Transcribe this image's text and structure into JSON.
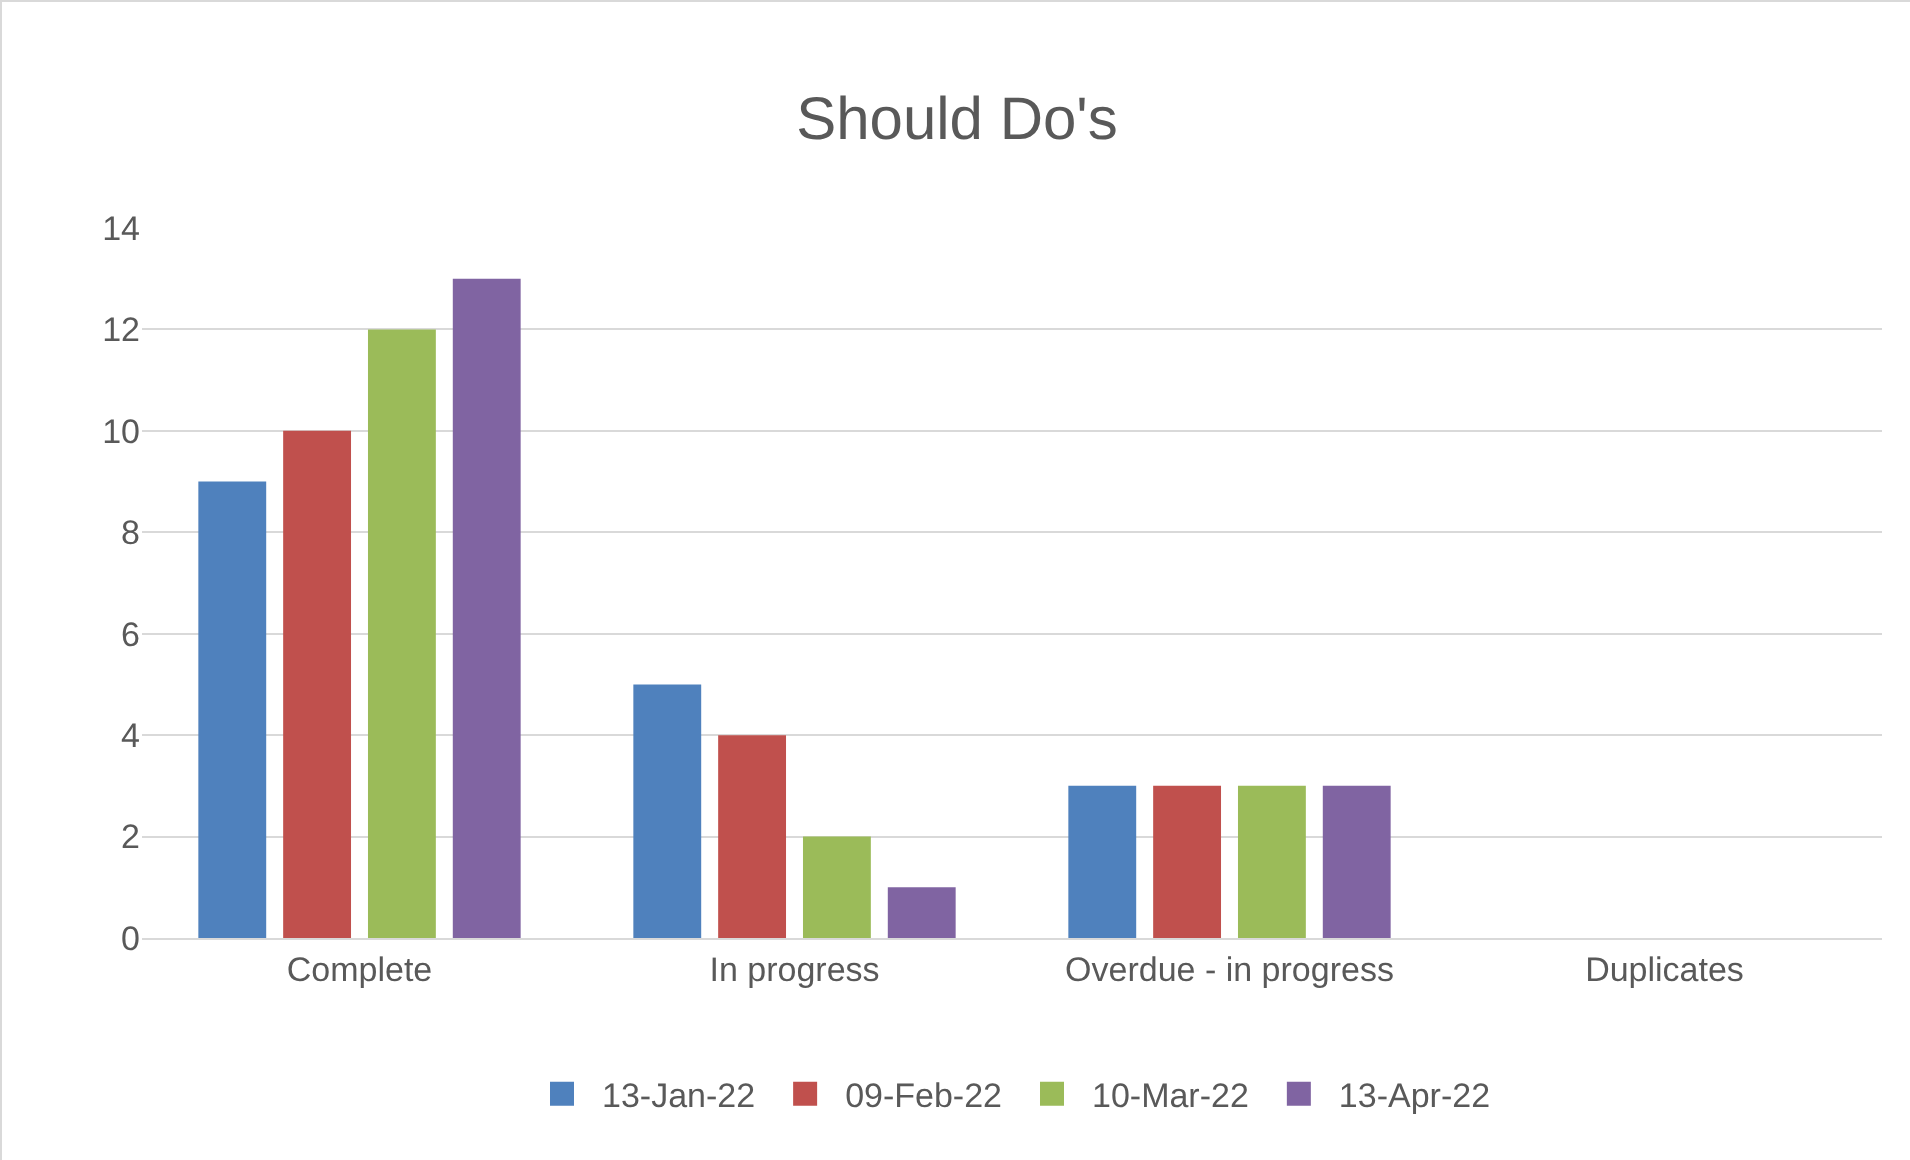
{
  "chart_data": {
    "type": "bar",
    "title": "Should Do's",
    "categories": [
      "Complete",
      "In progress",
      "Overdue - in progress",
      "Duplicates"
    ],
    "series": [
      {
        "name": "13-Jan-22",
        "color": "#4f81bd",
        "values": [
          9,
          5,
          3,
          0
        ]
      },
      {
        "name": "09-Feb-22",
        "color": "#c0504d",
        "values": [
          10,
          4,
          3,
          0
        ]
      },
      {
        "name": "10-Mar-22",
        "color": "#9bbb59",
        "values": [
          12,
          2,
          3,
          0
        ]
      },
      {
        "name": "13-Apr-22",
        "color": "#8064a2",
        "values": [
          13,
          1,
          3,
          0
        ]
      }
    ],
    "ylim": [
      0,
      14
    ],
    "yticks": [
      0,
      2,
      4,
      6,
      8,
      10,
      12,
      14
    ],
    "grid": "y",
    "legend": "bottom"
  }
}
